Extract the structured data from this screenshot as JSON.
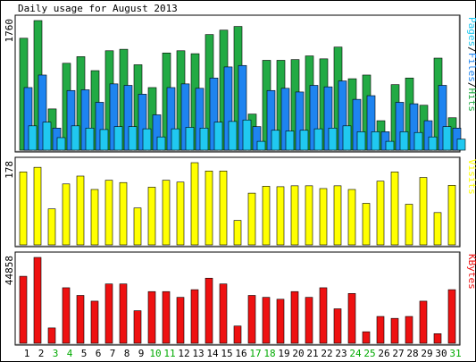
{
  "chart_data": [
    {
      "type": "bar",
      "title": "Daily usage for August 2013",
      "panel": "hits-files-pages",
      "ymax_label": "1760",
      "categories": [
        "1",
        "2",
        "3",
        "4",
        "5",
        "6",
        "7",
        "8",
        "9",
        "10",
        "11",
        "12",
        "13",
        "14",
        "15",
        "16",
        "17",
        "18",
        "19",
        "20",
        "21",
        "22",
        "23",
        "24",
        "25",
        "26",
        "27",
        "28",
        "29",
        "30",
        "31"
      ],
      "weekend_days": [
        "3",
        "4",
        "10",
        "11",
        "17",
        "18",
        "24",
        "25",
        "31"
      ],
      "series": [
        {
          "name": "Hits",
          "color": "#22aa44",
          "values": [
            1520,
            1760,
            560,
            1180,
            1270,
            1080,
            1350,
            1370,
            1160,
            850,
            1320,
            1350,
            1310,
            1570,
            1630,
            1680,
            490,
            1220,
            1220,
            1230,
            1280,
            1240,
            1400,
            970,
            1020,
            400,
            890,
            980,
            610,
            1250,
            440
          ]
        },
        {
          "name": "Files",
          "color": "#1e84f0",
          "values": [
            850,
            1020,
            300,
            810,
            820,
            650,
            900,
            880,
            760,
            480,
            850,
            900,
            840,
            980,
            1130,
            1150,
            320,
            810,
            840,
            790,
            880,
            860,
            940,
            690,
            740,
            250,
            650,
            630,
            400,
            880,
            300
          ]
        },
        {
          "name": "Pages",
          "color": "#20c8f0",
          "values": [
            330,
            380,
            170,
            330,
            300,
            280,
            320,
            320,
            290,
            180,
            290,
            310,
            300,
            380,
            390,
            410,
            120,
            270,
            260,
            270,
            290,
            300,
            330,
            250,
            250,
            120,
            250,
            240,
            180,
            320,
            150
          ]
        }
      ],
      "ylabel_parts": [
        {
          "text": "Pages",
          "color": "#20c8f0"
        },
        {
          "text": "/",
          "color": "#000000"
        },
        {
          "text": "Files",
          "color": "#1e84f0"
        },
        {
          "text": "/",
          "color": "#000000"
        },
        {
          "text": "Hits",
          "color": "#22aa44"
        }
      ]
    },
    {
      "type": "bar",
      "panel": "visits",
      "ymax_label": "178",
      "categories": [
        "1",
        "2",
        "3",
        "4",
        "5",
        "6",
        "7",
        "8",
        "9",
        "10",
        "11",
        "12",
        "13",
        "14",
        "15",
        "16",
        "17",
        "18",
        "19",
        "20",
        "21",
        "22",
        "23",
        "24",
        "25",
        "26",
        "27",
        "28",
        "29",
        "30",
        "31"
      ],
      "series": [
        {
          "name": "Visits",
          "color": "#ffff00",
          "values": [
            158,
            168,
            78,
            132,
            149,
            120,
            140,
            135,
            80,
            125,
            140,
            136,
            178,
            160,
            160,
            53,
            112,
            127,
            126,
            128,
            128,
            122,
            128,
            120,
            90,
            138,
            158,
            88,
            146,
            70,
            129
          ]
        }
      ],
      "ylabel_parts": [
        {
          "text": "Visits",
          "color": "#ffff00"
        }
      ]
    },
    {
      "type": "bar",
      "panel": "kbytes",
      "ymax_label": "44858",
      "categories": [
        "1",
        "2",
        "3",
        "4",
        "5",
        "6",
        "7",
        "8",
        "9",
        "10",
        "11",
        "12",
        "13",
        "14",
        "15",
        "16",
        "17",
        "18",
        "19",
        "20",
        "21",
        "22",
        "23",
        "24",
        "25",
        "26",
        "27",
        "28",
        "29",
        "30",
        "31"
      ],
      "series": [
        {
          "name": "KBytes",
          "color": "#ee1111",
          "values": [
            35000,
            44858,
            8000,
            29000,
            25000,
            22000,
            31000,
            31000,
            17000,
            27000,
            27000,
            24000,
            28000,
            34000,
            31000,
            9000,
            25000,
            24000,
            23000,
            27000,
            24000,
            29000,
            18000,
            26000,
            6000,
            14000,
            13000,
            14000,
            22000,
            5000,
            28000
          ]
        }
      ],
      "ylabel_parts": [
        {
          "text": "KBytes",
          "color": "#ee1111"
        }
      ]
    }
  ]
}
